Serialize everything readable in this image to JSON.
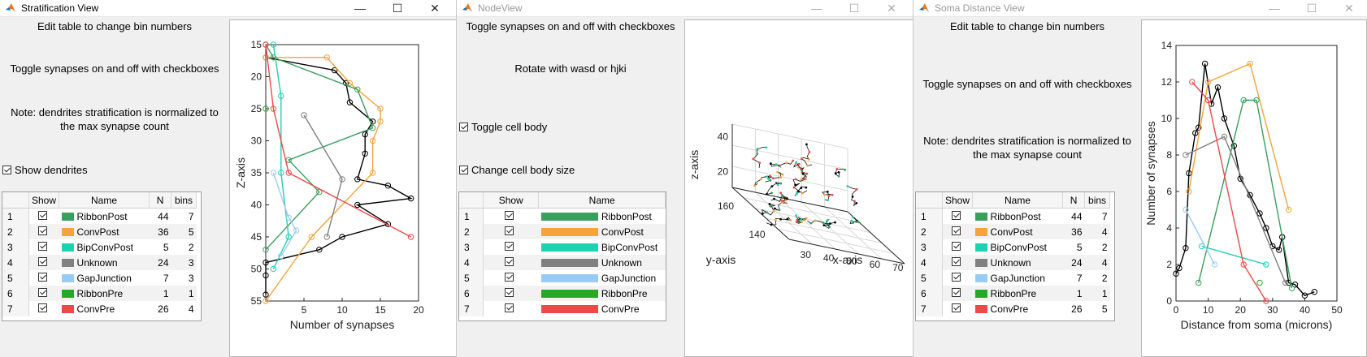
{
  "windows": {
    "strat": {
      "title": "Stratification View",
      "instr1": "Edit table to change bin numbers",
      "instr2": "Toggle synapses on and off with checkboxes",
      "instr3a": "Note: dendrites stratification is normalized to",
      "instr3b": "the max synapse count",
      "show_dendrites": "Show dendrites"
    },
    "node": {
      "title": "NodeView",
      "instr1": "Toggle synapses on and off with checkboxes",
      "instr2": "Rotate with wasd or hjki",
      "toggle_cell_body": "Toggle cell body",
      "change_cell_body_size": "Change cell body size"
    },
    "soma": {
      "title": "Soma Distance View",
      "instr1": "Edit table to change bin numbers",
      "instr2": "Toggle synapses on and off with checkboxes",
      "instr3a": "Note: dendrites stratification is normalized to",
      "instr3b": "the max synapse count"
    }
  },
  "table_headers": {
    "show": "Show",
    "name": "Name",
    "n": "N",
    "bins": "bins"
  },
  "synapses": [
    {
      "row": "1",
      "name": "RibbonPost",
      "n": "44",
      "bins_strat": "7",
      "bins_soma": "7",
      "color": "#3a9e5f"
    },
    {
      "row": "2",
      "name": "ConvPost",
      "n": "36",
      "bins_strat": "5",
      "bins_soma": "4",
      "color": "#f5a33a"
    },
    {
      "row": "3",
      "name": "BipConvPost",
      "n": "5",
      "bins_strat": "2",
      "bins_soma": "2",
      "color": "#1fd1b0"
    },
    {
      "row": "4",
      "name": "Unknown",
      "n": "24",
      "bins_strat": "3",
      "bins_soma": "4",
      "color": "#808080"
    },
    {
      "row": "5",
      "name": "GapJunction",
      "n": "7",
      "bins_strat": "3",
      "bins_soma": "2",
      "color": "#99ccf5"
    },
    {
      "row": "6",
      "name": "RibbonPre",
      "n": "1",
      "bins_strat": "1",
      "bins_soma": "1",
      "color": "#22aa22"
    },
    {
      "row": "7",
      "name": "ConvPre",
      "n": "26",
      "bins_strat": "4",
      "bins_soma": "5",
      "color": "#f04848"
    }
  ],
  "chart_data": [
    {
      "type": "line",
      "xlabel": "Number of synapses",
      "ylabel": "Z-axis",
      "xlim": [
        0,
        20
      ],
      "ylim": [
        55,
        15
      ],
      "y_reversed": true,
      "xticks": [
        5,
        10,
        15,
        20
      ],
      "yticks": [
        15,
        20,
        25,
        30,
        35,
        40,
        45,
        50,
        55
      ],
      "series": [
        {
          "color": "#000000",
          "points": [
            [
              0,
              17
            ],
            [
              9,
              19
            ],
            [
              10.5,
              21
            ],
            [
              11,
              24
            ],
            [
              14,
              27
            ],
            [
              13,
              29
            ],
            [
              13,
              32
            ],
            [
              12,
              36
            ],
            [
              16,
              37
            ],
            [
              19,
              39
            ],
            [
              12,
              40
            ],
            [
              16,
              43
            ],
            [
              10,
              45
            ],
            [
              7,
              47
            ],
            [
              0,
              49
            ],
            [
              0,
              51
            ],
            [
              0,
              54
            ]
          ]
        },
        {
          "color": "#f5a33a",
          "points": [
            [
              0,
              17
            ],
            [
              8,
              17
            ],
            [
              11,
              21
            ],
            [
              15,
              25
            ],
            [
              15,
              27
            ],
            [
              14,
              30
            ],
            [
              14,
              35
            ],
            [
              6,
              45
            ],
            [
              0,
              55
            ]
          ]
        },
        {
          "color": "#3a9e5f",
          "points": [
            [
              0,
              15
            ],
            [
              1,
              17
            ],
            [
              12,
              22
            ],
            [
              14,
              28
            ],
            [
              3,
              33
            ],
            [
              7,
              38
            ],
            [
              0,
              47
            ]
          ]
        },
        {
          "color": "#1fd1b0",
          "points": [
            [
              1,
              15
            ],
            [
              2,
              23
            ],
            [
              2,
              35
            ],
            [
              3,
              45
            ],
            [
              1,
              50
            ]
          ]
        },
        {
          "color": "#808080",
          "points": [
            [
              5,
              26
            ],
            [
              10,
              36
            ],
            [
              8,
              45
            ]
          ]
        },
        {
          "color": "#99ccf5",
          "points": [
            [
              1,
              35
            ],
            [
              3,
              42
            ],
            [
              4,
              44
            ],
            [
              2,
              48
            ]
          ]
        },
        {
          "color": "#f04848",
          "points": [
            [
              0,
              15
            ],
            [
              1,
              25
            ],
            [
              3,
              35
            ],
            [
              19,
              45
            ]
          ]
        },
        {
          "color": "#22aa22",
          "points": [
            [
              0,
              25
            ]
          ]
        }
      ]
    },
    {
      "type": "scatter",
      "xlabel": "x-axis",
      "ylabel": "y-axis",
      "zlabel": "z-axis",
      "xticks": [
        "30",
        "40",
        "50",
        "60",
        "70"
      ],
      "yticks": [
        "140",
        "160"
      ],
      "zticks": [
        "20",
        "40"
      ]
    },
    {
      "type": "line",
      "xlabel": "Distance from soma (microns)",
      "ylabel": "Number of synapses",
      "xlim": [
        0,
        50
      ],
      "ylim": [
        0,
        14
      ],
      "xticks": [
        0,
        10,
        20,
        30,
        40,
        50
      ],
      "yticks": [
        0,
        2,
        4,
        6,
        8,
        10,
        12,
        14
      ],
      "series": [
        {
          "color": "#000000",
          "points": [
            [
              0,
              1.5
            ],
            [
              1,
              1.8
            ],
            [
              3,
              2.9
            ],
            [
              4,
              7
            ],
            [
              6,
              9.2
            ],
            [
              7,
              9.5
            ],
            [
              9,
              13
            ],
            [
              11,
              10.8
            ],
            [
              13,
              11.7
            ],
            [
              15,
              10
            ],
            [
              18,
              8.5
            ],
            [
              20,
              6.7
            ],
            [
              23,
              5.8
            ],
            [
              26,
              4.8
            ],
            [
              28,
              4
            ],
            [
              30,
              3
            ],
            [
              32,
              2.8
            ],
            [
              33,
              3.5
            ],
            [
              35,
              1
            ],
            [
              37,
              0.9
            ],
            [
              40,
              0.3
            ],
            [
              43,
              0.5
            ]
          ]
        },
        {
          "color": "#f5a33a",
          "points": [
            [
              4,
              6
            ],
            [
              10,
              12
            ],
            [
              23,
              13
            ],
            [
              35,
              5
            ]
          ]
        },
        {
          "color": "#3a9e5f",
          "points": [
            [
              7,
              1
            ],
            [
              21,
              11
            ],
            [
              25,
              11
            ],
            [
              36,
              0.7
            ]
          ]
        },
        {
          "color": "#1fd1b0",
          "points": [
            [
              8,
              3
            ],
            [
              28,
              2
            ]
          ]
        },
        {
          "color": "#808080",
          "points": [
            [
              3,
              8
            ],
            [
              15,
              9
            ],
            [
              34,
              1
            ]
          ]
        },
        {
          "color": "#99ccf5",
          "points": [
            [
              3,
              5
            ],
            [
              12,
              2
            ]
          ]
        },
        {
          "color": "#f04848",
          "points": [
            [
              5,
              12
            ],
            [
              10,
              11
            ],
            [
              21,
              2
            ],
            [
              28,
              0
            ]
          ]
        },
        {
          "color": "#22aa22",
          "points": [
            [
              26,
              1
            ]
          ]
        }
      ]
    }
  ]
}
